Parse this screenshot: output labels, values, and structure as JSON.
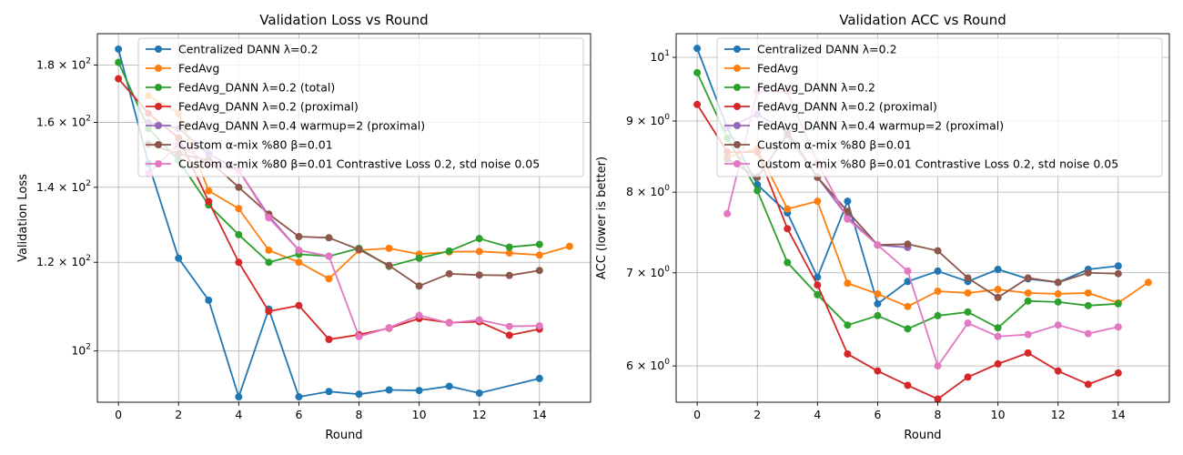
{
  "chart_data": [
    {
      "type": "line",
      "title": "Validation Loss vs Round",
      "xlabel": "Round",
      "ylabel": "Validation Loss",
      "yscale": "log",
      "xlim": [
        -0.7,
        15.7
      ],
      "ylim": [
        90,
        192
      ],
      "xticks": [
        0,
        2,
        4,
        6,
        8,
        10,
        12,
        14
      ],
      "yticks": [
        {
          "value": 100,
          "base": "10",
          "exp": "2",
          "mult": ""
        },
        {
          "value": 120,
          "base": "10",
          "exp": "2",
          "mult": "1.2 × "
        },
        {
          "value": 140,
          "base": "10",
          "exp": "2",
          "mult": "1.4 × "
        },
        {
          "value": 160,
          "base": "10",
          "exp": "2",
          "mult": "1.6 × "
        },
        {
          "value": 180,
          "base": "10",
          "exp": "2",
          "mult": "1.8 × "
        }
      ],
      "grid": true,
      "legend_position": "upper-right",
      "series": [
        {
          "name": "Centralized DANN λ=0.2",
          "color": "#1f77b4",
          "x": [
            0,
            1,
            2,
            3,
            4,
            5,
            6,
            7,
            8,
            9,
            10,
            11,
            12,
            14
          ],
          "values": [
            186,
            147,
            121,
            111,
            91,
            109,
            91,
            92,
            91.5,
            92.3,
            92.2,
            93,
            91.7,
            94.5
          ],
          "x_extra": [
            13
          ],
          "values_extra": [
            94
          ]
        },
        {
          "name": "FedAvg",
          "color": "#ff7f0e",
          "x": [
            1,
            2,
            3,
            4,
            5,
            6,
            7,
            8,
            9,
            10,
            11,
            12,
            13,
            14,
            15
          ],
          "values": [
            169,
            163,
            139,
            134,
            123,
            120,
            116,
            123,
            123.5,
            122,
            122.6,
            122.7,
            122.3,
            121.8,
            124
          ]
        },
        {
          "name": "FedAvg_DANN λ=0.2 (total)",
          "color": "#2ca02c",
          "x": [
            0,
            1,
            2,
            3,
            4,
            5,
            6,
            7,
            8,
            9,
            10,
            11,
            12,
            13,
            14
          ],
          "values": [
            181,
            158,
            148,
            135,
            127,
            120,
            122,
            121.5,
            123.5,
            119,
            121,
            122.8,
            126,
            123.8,
            124.5
          ]
        },
        {
          "name": "FedAvg_DANN λ=0.2 (proximal)",
          "color": "#d62728",
          "x": [
            0,
            1,
            2,
            3,
            4,
            5,
            6,
            7,
            8,
            9,
            10,
            11,
            12,
            13,
            14
          ],
          "values": [
            175,
            163,
            155,
            136,
            120,
            108.5,
            109.8,
            102.4,
            103.4,
            104.8,
            106.9,
            106,
            106.2,
            103.3,
            104.6
          ]
        },
        {
          "name": "FedAvg_DANN λ=0.4 warmup=2 (proximal)",
          "color": "#9467bd",
          "x": [
            1,
            2,
            3,
            4,
            5,
            6,
            7
          ],
          "values": [
            160,
            158,
            150,
            145,
            132,
            123,
            121.5
          ]
        },
        {
          "name": "Custom α-mix %80 β=0.01",
          "color": "#8c564b",
          "x": [
            1,
            2,
            3,
            4,
            5,
            6,
            7,
            8,
            9,
            10,
            11,
            12,
            13,
            14
          ],
          "values": [
            153,
            150,
            148,
            140,
            132.5,
            126.5,
            126.2,
            123.2,
            119.2,
            114.3,
            117.2,
            116.9,
            116.8,
            118
          ]
        },
        {
          "name": "Custom α-mix %80 β=0.01 Contrastive Loss 0.2, std noise 0.05",
          "color": "#e377c2",
          "x": [
            1,
            2,
            3,
            4,
            5,
            6,
            7,
            8,
            9,
            10,
            11,
            12,
            13,
            14
          ],
          "values": [
            144,
            153,
            147,
            145,
            131.5,
            123,
            121.5,
            103,
            104.9,
            107.6,
            105.9,
            106.6,
            105.2,
            105.3
          ]
        }
      ]
    },
    {
      "type": "line",
      "title": "Validation ACC vs Round",
      "xlabel": "Round",
      "ylabel": "ACC (lower is better)",
      "yscale": "log",
      "xlim": [
        -0.7,
        15.7
      ],
      "ylim": [
        5.65,
        10.4
      ],
      "xticks": [
        0,
        2,
        4,
        6,
        8,
        10,
        12,
        14
      ],
      "yticks": [
        {
          "value": 6,
          "base": "6",
          "exp": "0",
          "mult": "",
          "pre": "",
          "x10": true
        },
        {
          "value": 7,
          "base": "7",
          "exp": "0",
          "mult": "",
          "pre": "",
          "x10": true
        },
        {
          "value": 8,
          "base": "8",
          "exp": "0",
          "mult": "",
          "pre": "",
          "x10": true
        },
        {
          "value": 9,
          "base": "9",
          "exp": "0",
          "mult": "",
          "pre": "",
          "x10": true
        },
        {
          "value": 10,
          "base": "10",
          "exp": "1",
          "mult": "",
          "pre": "",
          "x10": false
        }
      ],
      "grid": true,
      "legend_position": "upper-right",
      "series": [
        {
          "name": "Centralized DANN λ=0.2",
          "color": "#1f77b4",
          "x": [
            0,
            1,
            2,
            3,
            4,
            5,
            6,
            7,
            8,
            9,
            10,
            11,
            12,
            13,
            14
          ],
          "values": [
            10.15,
            8.9,
            8.1,
            7.73,
            6.95,
            7.88,
            6.65,
            6.9,
            7.02,
            6.9,
            7.04,
            6.93,
            6.89,
            7.04,
            7.08
          ]
        },
        {
          "name": "FedAvg",
          "color": "#ff7f0e",
          "x": [
            1,
            2,
            3,
            4,
            5,
            6,
            7,
            8,
            9,
            10,
            11,
            12,
            13,
            14,
            15
          ],
          "values": [
            8.48,
            8.6,
            7.78,
            7.88,
            6.88,
            6.76,
            6.62,
            6.79,
            6.77,
            6.81,
            6.77,
            6.76,
            6.77,
            6.66,
            6.89
          ]
        },
        {
          "name": "FedAvg_DANN λ=0.2",
          "color": "#2ca02c",
          "x": [
            0,
            1,
            2,
            3,
            4,
            5,
            6,
            7,
            8,
            9,
            10,
            11,
            12,
            13,
            14
          ],
          "values": [
            9.75,
            8.75,
            8.02,
            7.12,
            6.75,
            6.42,
            6.52,
            6.38,
            6.52,
            6.56,
            6.39,
            6.68,
            6.67,
            6.63,
            6.65
          ]
        },
        {
          "name": "FedAvg_DANN λ=0.2 (proximal)",
          "color": "#d62728",
          "x": [
            0,
            1,
            2,
            3,
            4,
            5,
            6,
            7,
            8,
            9,
            10,
            11,
            12,
            13,
            14
          ],
          "values": [
            9.25,
            8.55,
            8.55,
            7.53,
            6.86,
            6.12,
            5.95,
            5.81,
            5.68,
            5.89,
            6.02,
            6.13,
            5.95,
            5.82,
            5.93
          ]
        },
        {
          "name": "FedAvg_DANN λ=0.4 warmup=2 (proximal)",
          "color": "#9467bd",
          "x": [
            1,
            2,
            3,
            4,
            5,
            6,
            7
          ],
          "values": [
            8.9,
            9.1,
            8.85,
            8.2,
            7.68,
            7.33,
            7.3
          ]
        },
        {
          "name": "Custom α-mix %80 β=0.01",
          "color": "#8c564b",
          "x": [
            1,
            2,
            3,
            4,
            5,
            6,
            7,
            8,
            9,
            10,
            11,
            12,
            13,
            14
          ],
          "values": [
            8.45,
            8.2,
            8.8,
            8.2,
            7.75,
            7.33,
            7.34,
            7.26,
            6.94,
            6.72,
            6.94,
            6.89,
            7,
            6.99
          ]
        },
        {
          "name": "Custom α-mix %80 β=0.01 Contrastive Loss 0.2, std noise 0.05",
          "color": "#e377c2",
          "x": [
            1,
            2,
            3,
            4,
            5,
            6,
            7,
            8,
            9,
            10,
            11,
            12,
            13,
            14
          ],
          "values": [
            7.72,
            9.45,
            9.45,
            8.4,
            7.65,
            7.33,
            7.02,
            6.0,
            6.44,
            6.3,
            6.32,
            6.42,
            6.33,
            6.4
          ]
        }
      ]
    }
  ]
}
